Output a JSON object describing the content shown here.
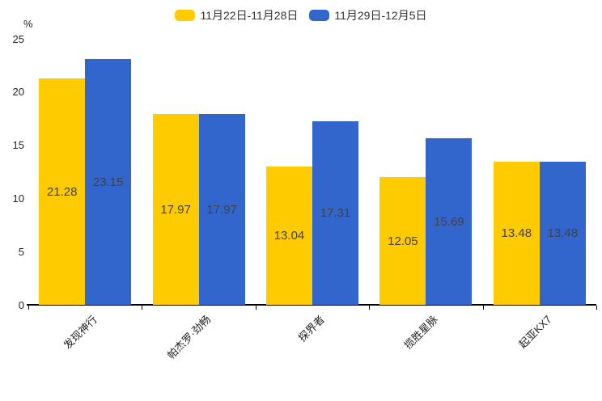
{
  "chart_data": {
    "type": "bar",
    "title": "",
    "xlabel": "",
    "ylabel": "%",
    "ylim": [
      0,
      25
    ],
    "yticks": [
      0,
      5,
      10,
      15,
      20,
      25
    ],
    "grid": false,
    "legend_position": "top",
    "value_labels": true,
    "categories": [
      "发现神行",
      "帕杰罗·劲畅",
      "探界者",
      "揽胜星脉",
      "起亚KX7"
    ],
    "series": [
      {
        "name": "11月22日-11月28日",
        "color": "#fecb00",
        "values": [
          21.28,
          17.97,
          13.04,
          12.05,
          13.48
        ]
      },
      {
        "name": "11月29日-12月5日",
        "color": "#3366cc",
        "values": [
          23.15,
          17.97,
          17.31,
          15.69,
          13.48
        ]
      }
    ],
    "colors": {
      "axis": "#000000",
      "tick_text": "#222222",
      "value_text": "#424242",
      "background": "#ffffff"
    }
  }
}
